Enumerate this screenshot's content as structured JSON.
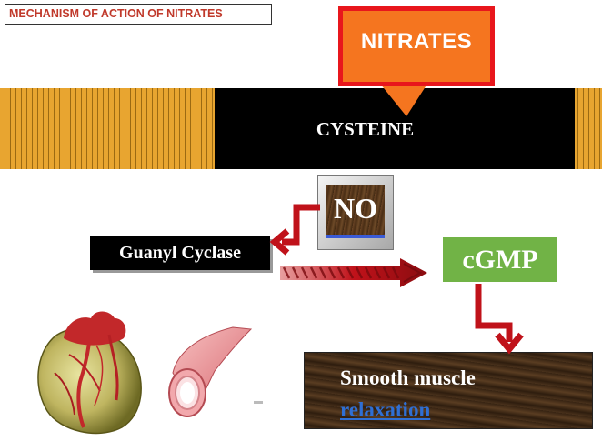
{
  "title": "MECHANISM OF ACTION OF NITRATES",
  "nitrates": "NITRATES",
  "cysteine": "CYSTEINE",
  "no": "NO",
  "guanyl": "Guanyl Cyclase",
  "cgmp": "cGMP",
  "smooth": {
    "line1": "Smooth muscle",
    "line2": "relaxation"
  },
  "colors": {
    "title_text": "#c0392b",
    "nitrates_fill": "#f5751f",
    "nitrates_border": "#e8161c",
    "cgmp_fill": "#71b346",
    "arrow": "#c0121a",
    "relaxation_link": "#2f6fd4"
  },
  "icons": [
    "heart-icon",
    "blood-vessel-icon",
    "twisted-arrow-icon"
  ]
}
